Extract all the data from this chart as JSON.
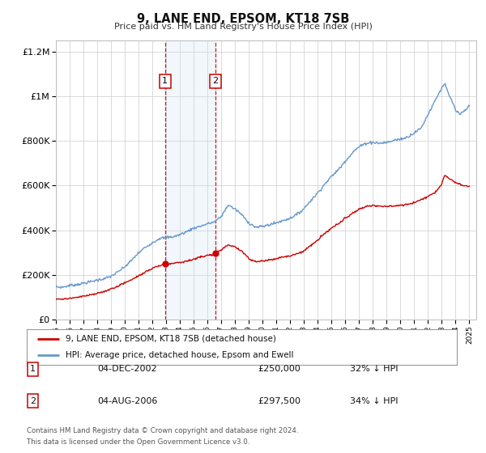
{
  "title": "9, LANE END, EPSOM, KT18 7SB",
  "subtitle": "Price paid vs. HM Land Registry's House Price Index (HPI)",
  "background_color": "#ffffff",
  "plot_bg_color": "#ffffff",
  "grid_color": "#cccccc",
  "sale1_date": 2002.92,
  "sale1_price": 250000,
  "sale2_date": 2006.58,
  "sale2_price": 297500,
  "legend_label_red": "9, LANE END, EPSOM, KT18 7SB (detached house)",
  "legend_label_blue": "HPI: Average price, detached house, Epsom and Ewell",
  "table_row1": [
    "1",
    "04-DEC-2002",
    "£250,000",
    "32% ↓ HPI"
  ],
  "table_row2": [
    "2",
    "04-AUG-2006",
    "£297,500",
    "34% ↓ HPI"
  ],
  "footer_line1": "Contains HM Land Registry data © Crown copyright and database right 2024.",
  "footer_line2": "This data is licensed under the Open Government Licence v3.0.",
  "red_color": "#cc0000",
  "blue_color": "#6699cc",
  "shade_color": "#cce0f5",
  "xmin": 1995,
  "xmax": 2025.5,
  "ymin": 0,
  "ymax": 1250000,
  "hpi_anchors": [
    [
      1995.0,
      148000
    ],
    [
      1995.5,
      145000
    ],
    [
      1996.0,
      152000
    ],
    [
      1996.5,
      155000
    ],
    [
      1997.0,
      162000
    ],
    [
      1997.5,
      168000
    ],
    [
      1998.0,
      175000
    ],
    [
      1998.5,
      182000
    ],
    [
      1999.0,
      195000
    ],
    [
      1999.5,
      215000
    ],
    [
      2000.0,
      240000
    ],
    [
      2000.5,
      268000
    ],
    [
      2001.0,
      300000
    ],
    [
      2001.5,
      328000
    ],
    [
      2002.0,
      348000
    ],
    [
      2002.5,
      368000
    ],
    [
      2003.0,
      372000
    ],
    [
      2003.5,
      375000
    ],
    [
      2004.0,
      385000
    ],
    [
      2004.5,
      400000
    ],
    [
      2005.0,
      415000
    ],
    [
      2005.5,
      425000
    ],
    [
      2006.0,
      435000
    ],
    [
      2006.5,
      445000
    ],
    [
      2007.0,
      470000
    ],
    [
      2007.5,
      520000
    ],
    [
      2008.0,
      500000
    ],
    [
      2008.5,
      475000
    ],
    [
      2009.0,
      440000
    ],
    [
      2009.5,
      420000
    ],
    [
      2010.0,
      425000
    ],
    [
      2010.5,
      432000
    ],
    [
      2011.0,
      440000
    ],
    [
      2011.5,
      450000
    ],
    [
      2012.0,
      460000
    ],
    [
      2012.5,
      475000
    ],
    [
      2013.0,
      500000
    ],
    [
      2013.5,
      535000
    ],
    [
      2014.0,
      570000
    ],
    [
      2014.5,
      605000
    ],
    [
      2015.0,
      640000
    ],
    [
      2015.5,
      670000
    ],
    [
      2016.0,
      710000
    ],
    [
      2016.5,
      745000
    ],
    [
      2017.0,
      770000
    ],
    [
      2017.5,
      790000
    ],
    [
      2018.0,
      795000
    ],
    [
      2018.5,
      790000
    ],
    [
      2019.0,
      795000
    ],
    [
      2019.5,
      808000
    ],
    [
      2020.0,
      810000
    ],
    [
      2020.5,
      820000
    ],
    [
      2021.0,
      838000
    ],
    [
      2021.5,
      860000
    ],
    [
      2022.0,
      920000
    ],
    [
      2022.5,
      980000
    ],
    [
      2023.0,
      1040000
    ],
    [
      2023.2,
      1060000
    ],
    [
      2023.5,
      1010000
    ],
    [
      2023.8,
      975000
    ],
    [
      2024.0,
      940000
    ],
    [
      2024.3,
      920000
    ],
    [
      2024.6,
      935000
    ],
    [
      2025.0,
      960000
    ]
  ],
  "red_anchors": [
    [
      1995.0,
      92000
    ],
    [
      1995.5,
      90000
    ],
    [
      1996.0,
      95000
    ],
    [
      1996.5,
      99000
    ],
    [
      1997.0,
      105000
    ],
    [
      1997.5,
      110000
    ],
    [
      1998.0,
      118000
    ],
    [
      1998.5,
      126000
    ],
    [
      1999.0,
      136000
    ],
    [
      1999.5,
      150000
    ],
    [
      2000.0,
      165000
    ],
    [
      2000.5,
      180000
    ],
    [
      2001.0,
      198000
    ],
    [
      2001.5,
      215000
    ],
    [
      2002.0,
      232000
    ],
    [
      2002.5,
      244000
    ],
    [
      2002.92,
      250000
    ],
    [
      2003.3,
      252000
    ],
    [
      2003.8,
      258000
    ],
    [
      2004.3,
      262000
    ],
    [
      2004.8,
      270000
    ],
    [
      2005.3,
      278000
    ],
    [
      2005.8,
      288000
    ],
    [
      2006.58,
      297500
    ],
    [
      2007.0,
      320000
    ],
    [
      2007.5,
      340000
    ],
    [
      2008.0,
      330000
    ],
    [
      2008.5,
      312000
    ],
    [
      2009.0,
      278000
    ],
    [
      2009.5,
      265000
    ],
    [
      2010.0,
      268000
    ],
    [
      2010.5,
      272000
    ],
    [
      2011.0,
      278000
    ],
    [
      2011.5,
      285000
    ],
    [
      2012.0,
      290000
    ],
    [
      2012.5,
      298000
    ],
    [
      2013.0,
      312000
    ],
    [
      2013.5,
      335000
    ],
    [
      2014.0,
      360000
    ],
    [
      2014.5,
      390000
    ],
    [
      2015.0,
      415000
    ],
    [
      2015.5,
      435000
    ],
    [
      2016.0,
      460000
    ],
    [
      2016.5,
      480000
    ],
    [
      2017.0,
      498000
    ],
    [
      2017.5,
      510000
    ],
    [
      2018.0,
      515000
    ],
    [
      2018.5,
      512000
    ],
    [
      2019.0,
      510000
    ],
    [
      2019.5,
      512000
    ],
    [
      2020.0,
      515000
    ],
    [
      2020.5,
      520000
    ],
    [
      2021.0,
      528000
    ],
    [
      2021.5,
      540000
    ],
    [
      2022.0,
      555000
    ],
    [
      2022.5,
      572000
    ],
    [
      2023.0,
      610000
    ],
    [
      2023.2,
      650000
    ],
    [
      2023.5,
      635000
    ],
    [
      2023.8,
      625000
    ],
    [
      2024.0,
      615000
    ],
    [
      2024.3,
      608000
    ],
    [
      2024.6,
      600000
    ],
    [
      2025.0,
      598000
    ]
  ]
}
